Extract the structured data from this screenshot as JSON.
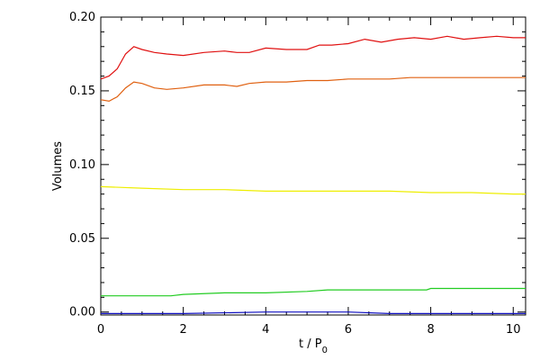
{
  "chart_data": {
    "type": "line",
    "title": "",
    "xlabel": "t / P",
    "xlabel_sub": "0",
    "ylabel": "Volumes",
    "xlim": [
      0,
      10.3
    ],
    "ylim": [
      -0.002,
      0.2
    ],
    "xticks": [
      0,
      2,
      4,
      6,
      8,
      10
    ],
    "xtick_labels": [
      "0",
      "2",
      "4",
      "6",
      "8",
      "10"
    ],
    "yticks": [
      0.0,
      0.05,
      0.1,
      0.15,
      0.2
    ],
    "ytick_labels": [
      "0.00",
      "0.05",
      "0.10",
      "0.15",
      "0.20"
    ],
    "grid": false,
    "legend": "none",
    "series": [
      {
        "color": "#e01010",
        "x": [
          0,
          0.2,
          0.4,
          0.6,
          0.8,
          1.0,
          1.3,
          1.6,
          2.0,
          2.5,
          3.0,
          3.3,
          3.6,
          4.0,
          4.5,
          5.0,
          5.3,
          5.6,
          6.0,
          6.4,
          6.8,
          7.2,
          7.6,
          8.0,
          8.4,
          8.8,
          9.2,
          9.6,
          10.0,
          10.3
        ],
        "y": [
          0.158,
          0.16,
          0.165,
          0.175,
          0.18,
          0.178,
          0.176,
          0.175,
          0.174,
          0.176,
          0.177,
          0.176,
          0.176,
          0.179,
          0.178,
          0.178,
          0.181,
          0.181,
          0.182,
          0.185,
          0.183,
          0.185,
          0.186,
          0.185,
          0.187,
          0.185,
          0.186,
          0.187,
          0.186,
          0.186
        ]
      },
      {
        "color": "#e06010",
        "x": [
          0,
          0.2,
          0.4,
          0.6,
          0.8,
          1.0,
          1.3,
          1.6,
          2.0,
          2.5,
          3.0,
          3.3,
          3.6,
          4.0,
          4.5,
          5.0,
          5.5,
          6.0,
          6.5,
          7.0,
          7.5,
          8.0,
          8.5,
          9.0,
          9.5,
          10.0,
          10.3
        ],
        "y": [
          0.144,
          0.143,
          0.146,
          0.152,
          0.156,
          0.155,
          0.152,
          0.151,
          0.152,
          0.154,
          0.154,
          0.153,
          0.155,
          0.156,
          0.156,
          0.157,
          0.157,
          0.158,
          0.158,
          0.158,
          0.159,
          0.159,
          0.159,
          0.159,
          0.159,
          0.159,
          0.159
        ]
      },
      {
        "color": "#eeee00",
        "x": [
          0,
          1,
          2,
          3,
          4,
          5,
          6,
          7,
          8,
          9,
          10,
          10.3
        ],
        "y": [
          0.085,
          0.084,
          0.083,
          0.083,
          0.082,
          0.082,
          0.082,
          0.082,
          0.081,
          0.081,
          0.08,
          0.08
        ]
      },
      {
        "color": "#22cc22",
        "x": [
          0,
          1,
          1.7,
          2.0,
          3.0,
          4.0,
          5.0,
          5.5,
          6.0,
          7.0,
          7.9,
          8.0,
          9.0,
          10.0,
          10.3
        ],
        "y": [
          0.011,
          0.011,
          0.011,
          0.012,
          0.013,
          0.013,
          0.014,
          0.015,
          0.015,
          0.015,
          0.015,
          0.016,
          0.016,
          0.016,
          0.016
        ]
      },
      {
        "color": "#1010c0",
        "x": [
          0,
          2,
          4,
          6,
          7,
          8,
          10.3
        ],
        "y": [
          -0.001,
          -0.001,
          0.0,
          0.0,
          -0.001,
          -0.001,
          -0.001
        ]
      }
    ]
  }
}
